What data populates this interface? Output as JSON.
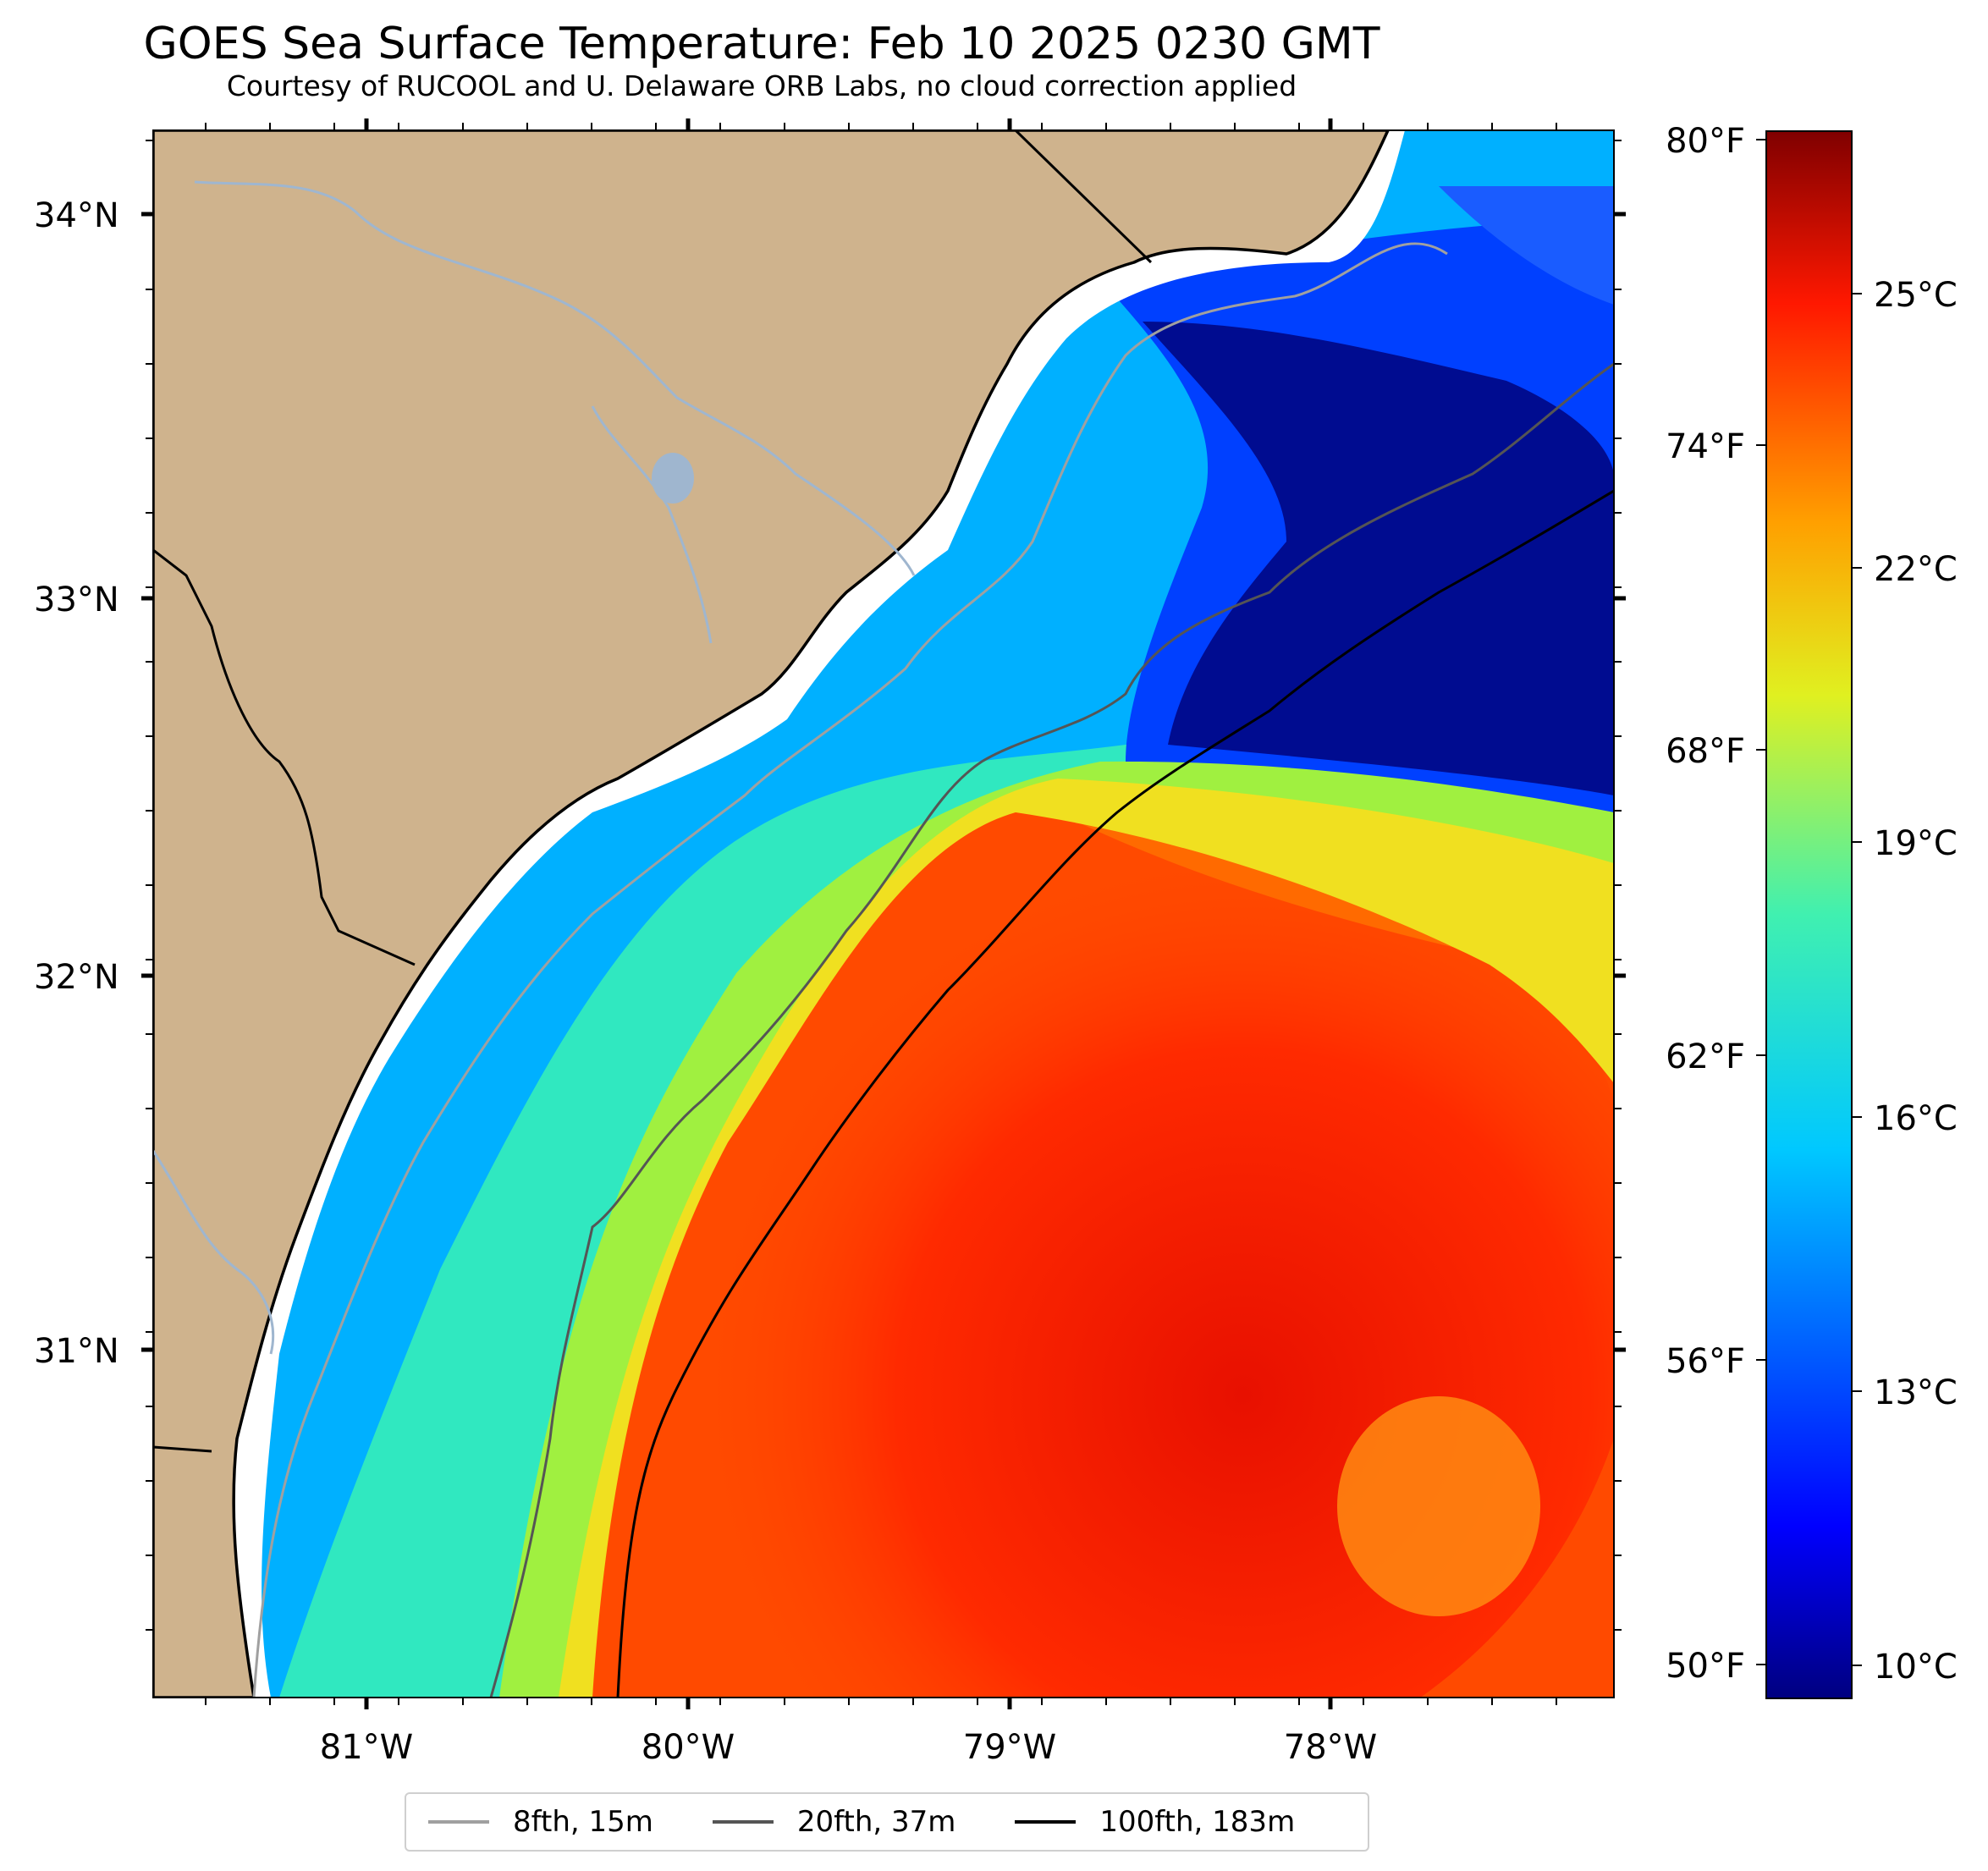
{
  "map": {
    "title": "GOES Sea Surface Temperature: Feb 10 2025 0230 GMT",
    "subtitle": "Courtesy of RUCOOL and U. Delaware ORB Labs, no cloud correction applied",
    "latitude_labels": [
      "34°N",
      "33°N",
      "32°N",
      "31°N"
    ],
    "longitude_labels": [
      "81°W",
      "80°W",
      "79°W",
      "78°W"
    ],
    "fahrenheit_labels": [
      "80°F",
      "74°F",
      "68°F",
      "62°F",
      "56°F",
      "50°F"
    ],
    "celsius_labels": [
      "25°C",
      "22°C",
      "19°C",
      "16°C",
      "13°C",
      "10°C"
    ],
    "colorbar_range_c": [
      9.5,
      27.0
    ],
    "colors": {
      "land": "#cfb38d",
      "river": "#9fb6cf",
      "coastline": "#000000",
      "isobath_8fth": "#a0a0a0",
      "isobath_20fth": "#555555",
      "isobath_100fth": "#000000"
    }
  },
  "legend": {
    "items": [
      {
        "label": "8fth, 15m",
        "color": "#a0a0a0"
      },
      {
        "label": "20fth, 37m",
        "color": "#555555"
      },
      {
        "label": "100fth, 183m",
        "color": "#000000"
      }
    ]
  }
}
